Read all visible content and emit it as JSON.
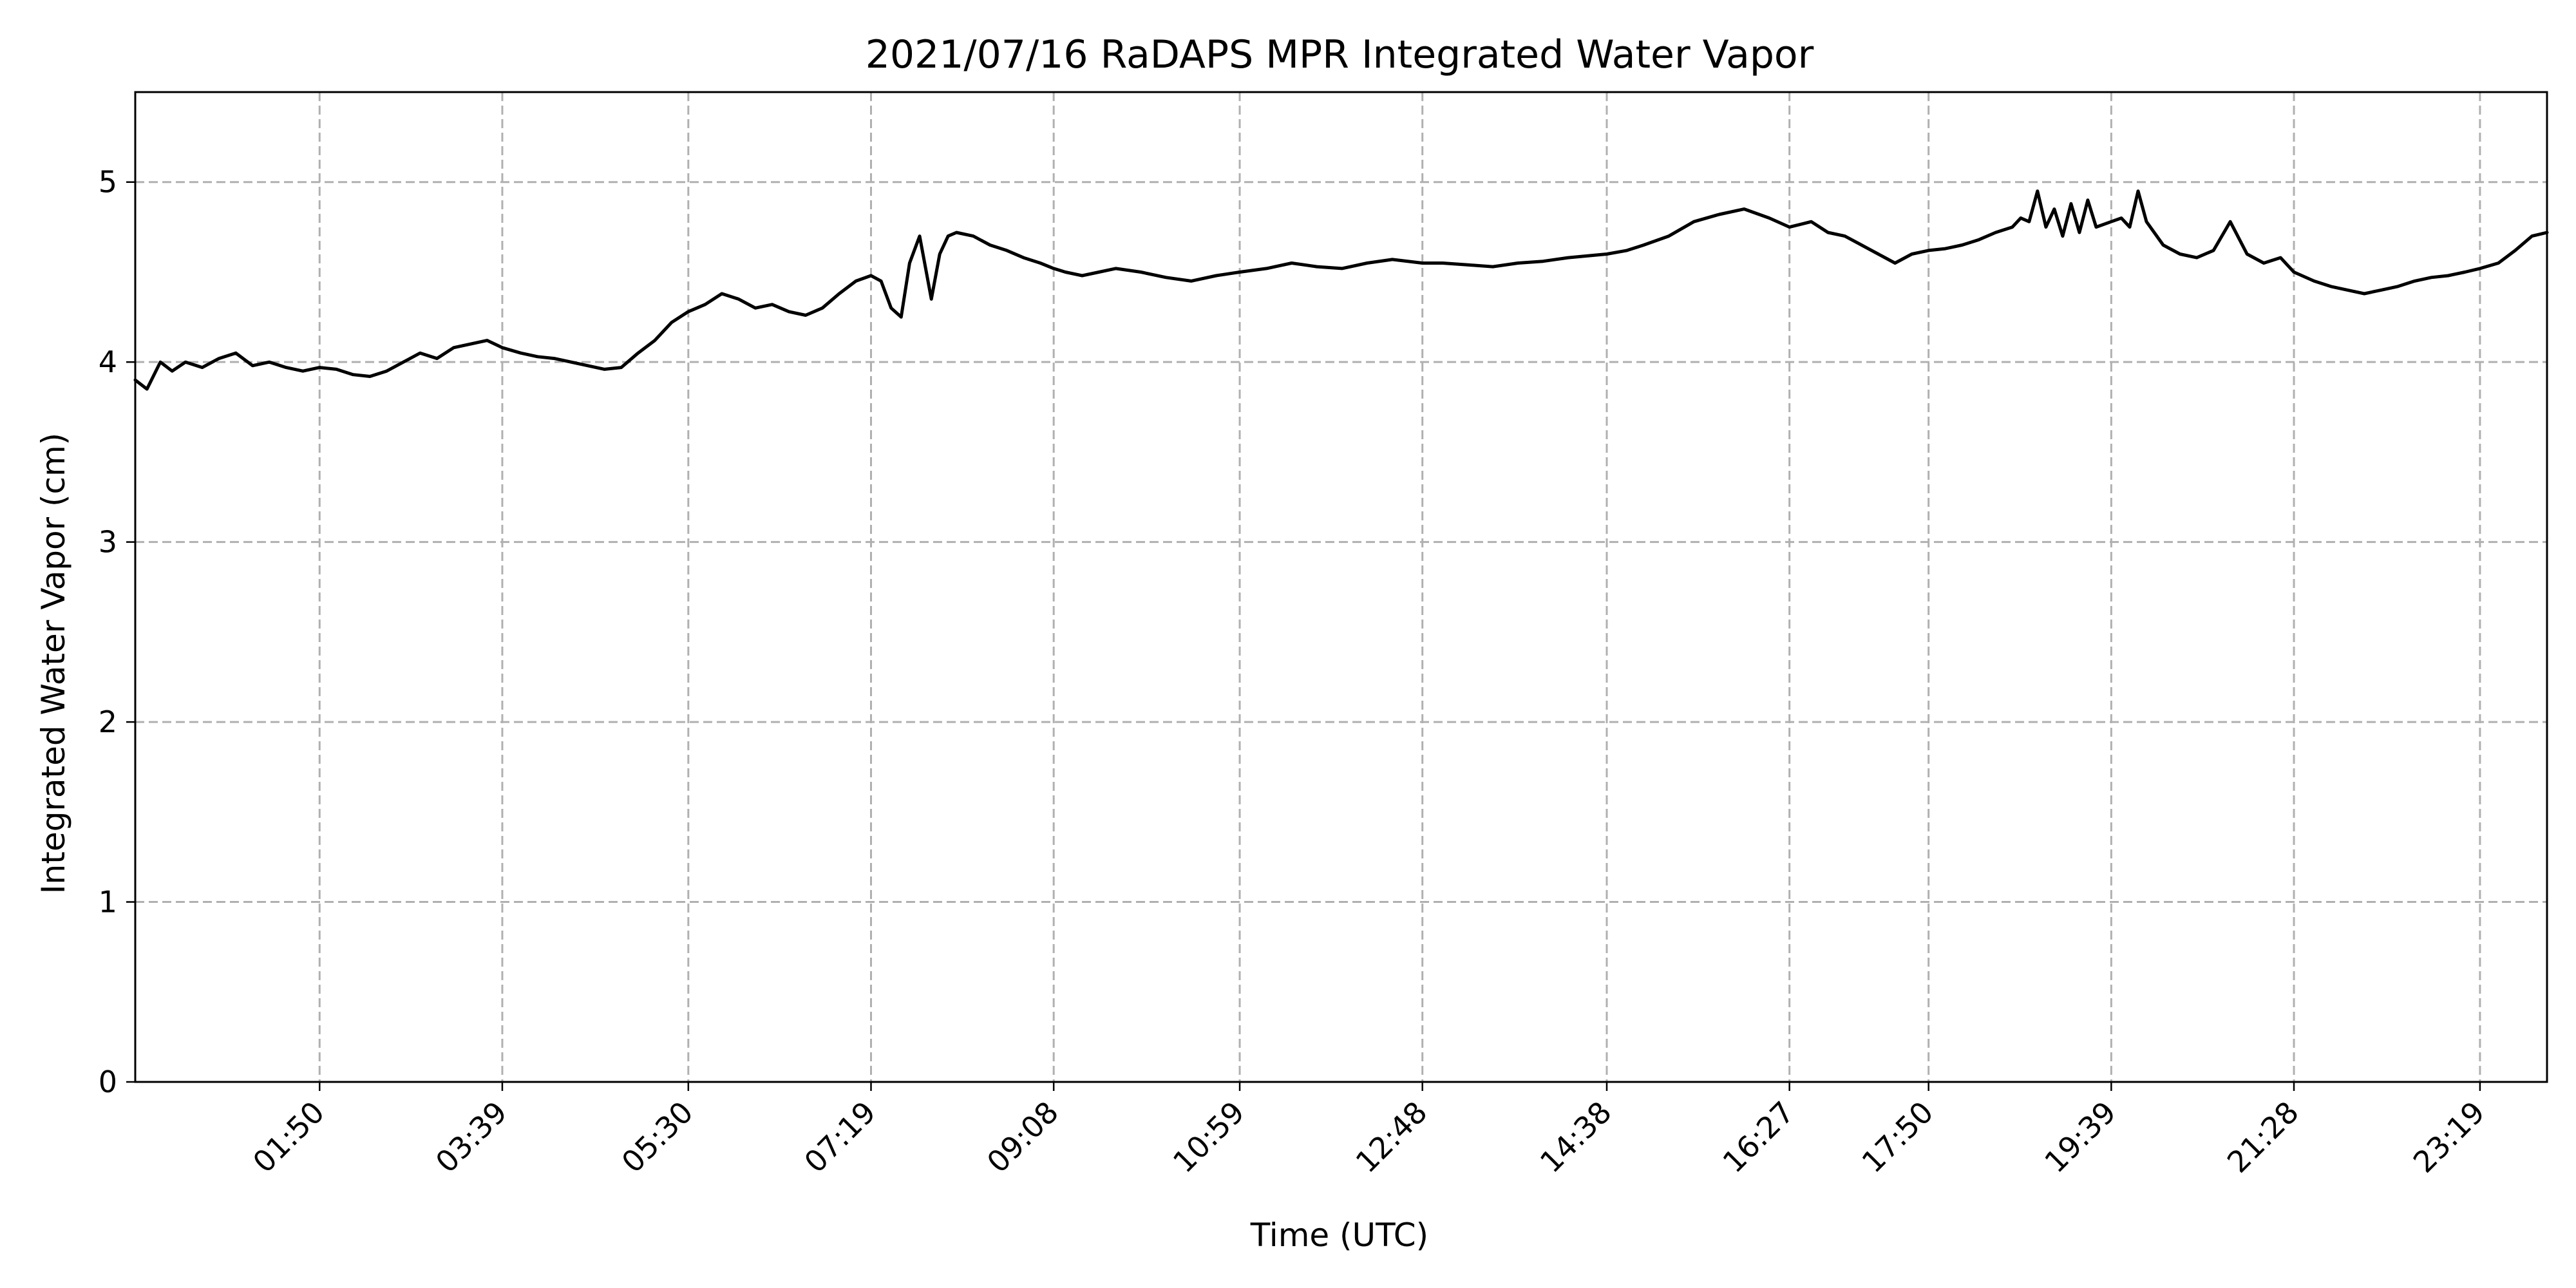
{
  "chart_data": {
    "type": "line",
    "title": "2021/07/16 RaDAPS MPR Integrated Water Vapor",
    "xlabel": "Time (UTC)",
    "ylabel": "Integrated Water Vapor (cm)",
    "xlim": [
      "00:00",
      "23:59"
    ],
    "ylim": [
      0,
      5.5
    ],
    "grid": true,
    "line_color": "#000000",
    "yticks": [
      0,
      1,
      2,
      3,
      4,
      5
    ],
    "xticks": [
      "01:50",
      "03:39",
      "05:30",
      "07:19",
      "09:08",
      "10:59",
      "12:48",
      "14:38",
      "16:27",
      "17:50",
      "19:39",
      "21:28",
      "23:19"
    ],
    "series": [
      {
        "x": [
          "00:00",
          "00:07",
          "00:15",
          "00:22",
          "00:30",
          "00:40",
          "00:50",
          "01:00",
          "01:10",
          "01:20",
          "01:30",
          "01:40",
          "01:50",
          "02:00",
          "02:10",
          "02:20",
          "02:30",
          "02:40",
          "02:50",
          "03:00",
          "03:10",
          "03:20",
          "03:30",
          "03:39",
          "03:50",
          "04:00",
          "04:10",
          "04:20",
          "04:30",
          "04:40",
          "04:50",
          "05:00",
          "05:10",
          "05:20",
          "05:30",
          "05:40",
          "05:50",
          "06:00",
          "06:10",
          "06:20",
          "06:30",
          "06:40",
          "06:50",
          "07:00",
          "07:10",
          "07:19",
          "07:25",
          "07:31",
          "07:37",
          "07:42",
          "07:48",
          "07:55",
          "08:00",
          "08:05",
          "08:10",
          "08:20",
          "08:30",
          "08:40",
          "08:50",
          "09:00",
          "09:08",
          "09:15",
          "09:25",
          "09:35",
          "09:45",
          "10:00",
          "10:15",
          "10:30",
          "10:45",
          "10:59",
          "11:15",
          "11:30",
          "11:45",
          "12:00",
          "12:15",
          "12:30",
          "12:48",
          "13:00",
          "13:15",
          "13:30",
          "13:45",
          "14:00",
          "14:15",
          "14:38",
          "14:50",
          "15:00",
          "15:15",
          "15:30",
          "15:45",
          "16:00",
          "16:15",
          "16:27",
          "16:40",
          "16:50",
          "17:00",
          "17:10",
          "17:20",
          "17:30",
          "17:40",
          "17:50",
          "18:00",
          "18:10",
          "18:20",
          "18:30",
          "18:40",
          "18:45",
          "18:50",
          "18:55",
          "19:00",
          "19:05",
          "19:10",
          "19:15",
          "19:20",
          "19:25",
          "19:30",
          "19:39",
          "19:45",
          "19:50",
          "19:55",
          "20:00",
          "20:10",
          "20:20",
          "20:30",
          "20:40",
          "20:50",
          "21:00",
          "21:10",
          "21:20",
          "21:28",
          "21:40",
          "21:50",
          "22:00",
          "22:10",
          "22:20",
          "22:30",
          "22:40",
          "22:50",
          "23:00",
          "23:10",
          "23:19",
          "23:30",
          "23:40",
          "23:50",
          "23:59"
        ],
        "y": [
          3.9,
          3.85,
          4.0,
          3.95,
          4.0,
          3.97,
          4.02,
          4.05,
          3.98,
          4.0,
          3.97,
          3.95,
          3.97,
          3.96,
          3.93,
          3.92,
          3.95,
          4.0,
          4.05,
          4.02,
          4.08,
          4.1,
          4.12,
          4.08,
          4.05,
          4.03,
          4.02,
          4.0,
          3.98,
          3.96,
          3.97,
          4.05,
          4.12,
          4.22,
          4.28,
          4.32,
          4.38,
          4.35,
          4.3,
          4.32,
          4.28,
          4.26,
          4.3,
          4.38,
          4.45,
          4.48,
          4.45,
          4.3,
          4.25,
          4.55,
          4.7,
          4.35,
          4.6,
          4.7,
          4.72,
          4.7,
          4.65,
          4.62,
          4.58,
          4.55,
          4.52,
          4.5,
          4.48,
          4.5,
          4.52,
          4.5,
          4.47,
          4.45,
          4.48,
          4.5,
          4.52,
          4.55,
          4.53,
          4.52,
          4.55,
          4.57,
          4.55,
          4.55,
          4.54,
          4.53,
          4.55,
          4.56,
          4.58,
          4.6,
          4.62,
          4.65,
          4.7,
          4.78,
          4.82,
          4.85,
          4.8,
          4.75,
          4.78,
          4.72,
          4.7,
          4.65,
          4.6,
          4.55,
          4.6,
          4.62,
          4.63,
          4.65,
          4.68,
          4.72,
          4.75,
          4.8,
          4.78,
          4.95,
          4.75,
          4.85,
          4.7,
          4.88,
          4.72,
          4.9,
          4.75,
          4.78,
          4.8,
          4.75,
          4.95,
          4.78,
          4.65,
          4.6,
          4.58,
          4.62,
          4.78,
          4.6,
          4.55,
          4.58,
          4.5,
          4.45,
          4.42,
          4.4,
          4.38,
          4.4,
          4.42,
          4.45,
          4.47,
          4.48,
          4.5,
          4.52,
          4.55,
          4.62,
          4.7,
          4.72
        ]
      }
    ]
  }
}
